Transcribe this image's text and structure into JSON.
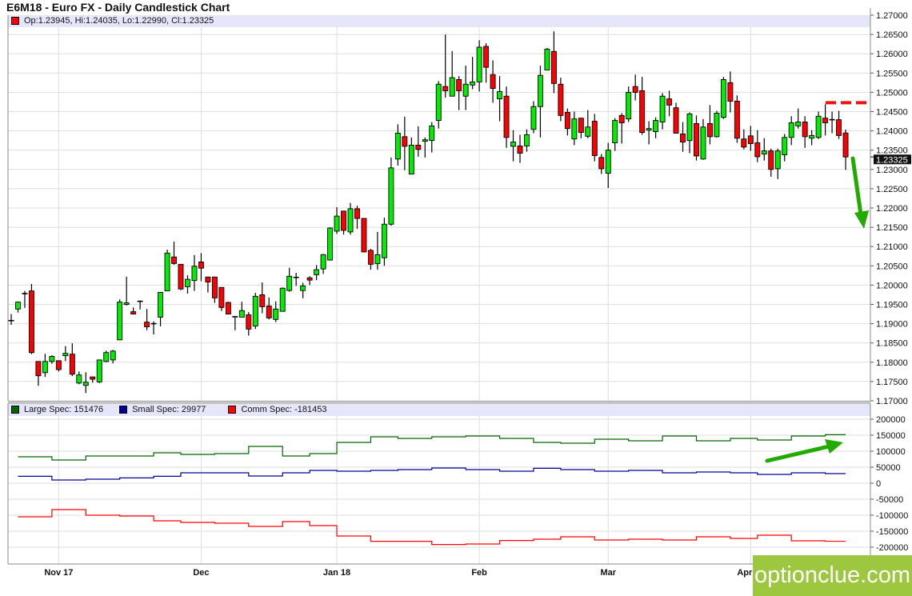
{
  "title": "E6M18 - Euro FX - Daily Candlestick Chart",
  "ohlc_legend": {
    "text": "Op:1.23945, Hi:1.24035, Lo:1.22990, Cl:1.23325",
    "color": "#ff0000"
  },
  "last_price_label": "1.23325",
  "watermark": "optionclue.com",
  "colors": {
    "up": "#00ee00",
    "down": "#ff0000",
    "large": "#006600",
    "small": "#000099",
    "comm": "#ff0000",
    "annotation": "#22aa00",
    "legend_bg": "#e6e6fa"
  },
  "chart_data": [
    {
      "type": "candlestick",
      "title": "E6M18 - Euro FX - Daily Candlestick Chart",
      "ylim": [
        1.17,
        1.27
      ],
      "y_ticks": [
        "1.17000",
        "1.17500",
        "1.18000",
        "1.18500",
        "1.19000",
        "1.19500",
        "1.20000",
        "1.20500",
        "1.21000",
        "1.21500",
        "1.22000",
        "1.22500",
        "1.23000",
        "1.23500",
        "1.24000",
        "1.24500",
        "1.25000",
        "1.25500",
        "1.26000",
        "1.26500",
        "1.27000"
      ],
      "x_ticks": [
        {
          "label": "Nov 17",
          "date": "2017-11-01"
        },
        {
          "label": "Dec",
          "date": "2017-12-01"
        },
        {
          "label": "Jan 18",
          "date": "2018-01-02"
        },
        {
          "label": "Feb",
          "date": "2018-02-01"
        },
        {
          "label": "Mar",
          "date": "2018-03-01"
        },
        {
          "label": "Apr",
          "date": "2018-04-02"
        }
      ],
      "grid": true,
      "candle_fields": [
        "date",
        "open",
        "high",
        "low",
        "close"
      ],
      "candles": [
        [
          "2017-10-23",
          1.1908,
          1.1925,
          1.1897,
          1.1908
        ],
        [
          "2017-10-24",
          1.1938,
          1.1957,
          1.1929,
          1.1956
        ],
        [
          "2017-10-25",
          1.1978,
          1.1985,
          1.1941,
          1.1978
        ],
        [
          "2017-10-26",
          1.1985,
          1.2003,
          1.1821,
          1.1825
        ],
        [
          "2017-10-27",
          1.1802,
          1.1802,
          1.1739,
          1.1765
        ],
        [
          "2017-10-30",
          1.1773,
          1.1822,
          1.1762,
          1.1802
        ],
        [
          "2017-10-31",
          1.1802,
          1.1818,
          1.1796,
          1.1815
        ],
        [
          "2017-11-01",
          1.1804,
          1.1804,
          1.1776,
          1.1781
        ],
        [
          "2017-11-02",
          1.1817,
          1.1842,
          1.1803,
          1.1823
        ],
        [
          "2017-11-03",
          1.1821,
          1.1849,
          1.1764,
          1.1769
        ],
        [
          "2017-11-06",
          1.1746,
          1.1776,
          1.1743,
          1.1767
        ],
        [
          "2017-11-07",
          1.174,
          1.1774,
          1.172,
          1.1748
        ],
        [
          "2017-11-08",
          1.1762,
          1.1762,
          1.1747,
          1.1756
        ],
        [
          "2017-11-09",
          1.1749,
          1.1806,
          1.1746,
          1.1806
        ],
        [
          "2017-11-10",
          1.1802,
          1.183,
          1.18,
          1.1825
        ],
        [
          "2017-11-13",
          1.1806,
          1.1832,
          1.1797,
          1.1829
        ],
        [
          "2017-11-14",
          1.1858,
          1.1963,
          1.1858,
          1.1956
        ],
        [
          "2017-11-15",
          1.195,
          1.2022,
          1.1947,
          1.1954
        ],
        [
          "2017-11-16",
          1.1931,
          1.1942,
          1.1925,
          1.1925
        ],
        [
          "2017-11-17",
          1.1958,
          1.196,
          1.1937,
          1.1958
        ],
        [
          "2017-11-20",
          1.1904,
          1.1938,
          1.1883,
          1.1892
        ],
        [
          "2017-11-21",
          1.19,
          1.1906,
          1.1872,
          1.19
        ],
        [
          "2017-11-22",
          1.1917,
          1.1981,
          1.1893,
          1.1981
        ],
        [
          "2017-11-24",
          1.1985,
          1.2092,
          1.1985,
          1.2083
        ],
        [
          "2017-11-27",
          1.2073,
          1.2113,
          1.2053,
          1.2056
        ],
        [
          "2017-11-28",
          1.2054,
          1.2054,
          1.1987,
          1.199
        ],
        [
          "2017-11-29",
          1.1996,
          1.2026,
          1.1978,
          1.2015
        ],
        [
          "2017-11-30",
          1.2012,
          1.2078,
          1.1985,
          1.2049
        ],
        [
          "2017-12-01",
          1.206,
          1.2083,
          1.201,
          1.2044
        ],
        [
          "2017-12-04",
          1.2021,
          1.2021,
          1.1981,
          1.2008
        ],
        [
          "2017-12-05",
          1.2021,
          1.2021,
          1.1954,
          1.1967
        ],
        [
          "2017-12-06",
          1.1994,
          1.1994,
          1.1933,
          1.1942
        ],
        [
          "2017-12-07",
          1.1955,
          1.1957,
          1.1925,
          1.1925
        ],
        [
          "2017-12-08",
          1.1918,
          1.1918,
          1.1883,
          1.1918
        ],
        [
          "2017-12-11",
          1.1917,
          1.1957,
          1.1917,
          1.1934
        ],
        [
          "2017-12-12",
          1.1923,
          1.193,
          1.1869,
          1.1886
        ],
        [
          "2017-12-13",
          1.1894,
          1.198,
          1.1886,
          1.1971
        ],
        [
          "2017-12-14",
          1.1975,
          1.2007,
          1.1927,
          1.1944
        ],
        [
          "2017-12-15",
          1.1946,
          1.1968,
          1.1911,
          1.1915
        ],
        [
          "2017-12-18",
          1.1911,
          1.1958,
          1.1904,
          1.1938
        ],
        [
          "2017-12-19",
          1.1932,
          1.1994,
          1.1932,
          1.1992
        ],
        [
          "2017-12-20",
          1.1986,
          1.2045,
          1.1983,
          1.2023
        ],
        [
          "2017-12-21",
          1.202,
          1.2032,
          1.1998,
          1.202
        ],
        [
          "2017-12-22",
          1.1986,
          1.2006,
          1.1966,
          1.1998
        ],
        [
          "2017-12-26",
          1.2019,
          1.2023,
          1.2,
          1.2013
        ],
        [
          "2017-12-27",
          1.2027,
          1.2052,
          1.2013,
          1.204
        ],
        [
          "2017-12-28",
          1.2042,
          1.2081,
          1.2029,
          1.2079
        ],
        [
          "2017-12-29",
          1.2065,
          1.215,
          1.2065,
          1.2148
        ],
        [
          "2018-01-02",
          1.214,
          1.2202,
          1.2133,
          1.2179
        ],
        [
          "2018-01-03",
          1.2192,
          1.2192,
          1.2131,
          1.2142
        ],
        [
          "2018-01-04",
          1.2138,
          1.2213,
          1.2131,
          1.2198
        ],
        [
          "2018-01-05",
          1.2198,
          1.2206,
          1.2146,
          1.2173
        ],
        [
          "2018-01-08",
          1.2173,
          1.2173,
          1.2086,
          1.2086
        ],
        [
          "2018-01-09",
          1.209,
          1.2094,
          1.204,
          1.2054
        ],
        [
          "2018-01-10",
          1.2056,
          1.2138,
          1.204,
          1.2079
        ],
        [
          "2018-01-11",
          1.2071,
          1.2175,
          1.205,
          1.2158
        ],
        [
          "2018-01-12",
          1.2158,
          1.2331,
          1.2154,
          1.2304
        ],
        [
          "2018-01-16",
          1.2327,
          1.2417,
          1.231,
          1.2394
        ],
        [
          "2018-01-17",
          1.2385,
          1.2437,
          1.2298,
          1.236
        ],
        [
          "2018-01-18",
          1.2288,
          1.2383,
          1.2288,
          1.2363
        ],
        [
          "2018-01-19",
          1.2363,
          1.2412,
          1.2333,
          1.2352
        ],
        [
          "2018-01-22",
          1.2373,
          1.2383,
          1.2331,
          1.2377
        ],
        [
          "2018-01-23",
          1.2375,
          1.2423,
          1.2344,
          1.2413
        ],
        [
          "2018-01-24",
          1.2427,
          1.2529,
          1.2406,
          1.2521
        ],
        [
          "2018-01-25",
          1.2515,
          1.265,
          1.2486,
          1.2504
        ],
        [
          "2018-01-26",
          1.249,
          1.2607,
          1.249,
          1.2538
        ],
        [
          "2018-01-29",
          1.2533,
          1.2542,
          1.2454,
          1.2504
        ],
        [
          "2018-01-30",
          1.249,
          1.2569,
          1.2454,
          1.2521
        ],
        [
          "2018-01-31",
          1.2519,
          1.2592,
          1.2508,
          1.2527
        ],
        [
          "2018-02-01",
          1.2527,
          1.2635,
          1.2502,
          1.2617
        ],
        [
          "2018-02-02",
          1.2619,
          1.2627,
          1.2525,
          1.2565
        ],
        [
          "2018-02-05",
          1.2546,
          1.2583,
          1.2473,
          1.251
        ],
        [
          "2018-02-06",
          1.2483,
          1.2542,
          1.2425,
          1.2502
        ],
        [
          "2018-02-07",
          1.249,
          1.2515,
          1.2356,
          1.2383
        ],
        [
          "2018-02-08",
          1.236,
          1.2402,
          1.2321,
          1.2371
        ],
        [
          "2018-02-09",
          1.2361,
          1.239,
          1.2317,
          1.2342
        ],
        [
          "2018-02-12",
          1.2361,
          1.2404,
          1.2346,
          1.239
        ],
        [
          "2018-02-13",
          1.2404,
          1.2477,
          1.2394,
          1.2463
        ],
        [
          "2018-02-14",
          1.2463,
          1.2569,
          1.2383,
          1.2544
        ],
        [
          "2018-02-15",
          1.2558,
          1.2615,
          1.2558,
          1.2612
        ],
        [
          "2018-02-16",
          1.2606,
          1.2658,
          1.2498,
          1.2523
        ],
        [
          "2018-02-20",
          1.2521,
          1.2538,
          1.2425,
          1.244
        ],
        [
          "2018-02-21",
          1.2448,
          1.2458,
          1.2388,
          1.2406
        ],
        [
          "2018-02-22",
          1.2379,
          1.245,
          1.2363,
          1.2431
        ],
        [
          "2018-02-23",
          1.2433,
          1.2433,
          1.2381,
          1.2396
        ],
        [
          "2018-02-26",
          1.2386,
          1.2454,
          1.2381,
          1.241
        ],
        [
          "2018-02-27",
          1.2425,
          1.2444,
          1.2321,
          1.2336
        ],
        [
          "2018-02-28",
          1.2331,
          1.234,
          1.2288,
          1.2302
        ],
        [
          "2018-03-01",
          1.229,
          1.2369,
          1.2252,
          1.235
        ],
        [
          "2018-03-02",
          1.2369,
          1.2433,
          1.2348,
          1.2427
        ],
        [
          "2018-03-05",
          1.244,
          1.2446,
          1.2367,
          1.2421
        ],
        [
          "2018-03-06",
          1.2431,
          1.2515,
          1.2423,
          1.25
        ],
        [
          "2018-03-07",
          1.2515,
          1.2546,
          1.2479,
          1.25
        ],
        [
          "2018-03-08",
          1.2504,
          1.254,
          1.239,
          1.2396
        ],
        [
          "2018-03-09",
          1.2402,
          1.2425,
          1.2365,
          1.2406
        ],
        [
          "2018-03-12",
          1.2398,
          1.2435,
          1.2381,
          1.2427
        ],
        [
          "2018-03-13",
          1.2423,
          1.2498,
          1.2404,
          1.249
        ],
        [
          "2018-03-14",
          1.2483,
          1.2504,
          1.2438,
          1.2467
        ],
        [
          "2018-03-15",
          1.246,
          1.2473,
          1.2394,
          1.2394
        ],
        [
          "2018-03-16",
          1.2392,
          1.2423,
          1.2346,
          1.2371
        ],
        [
          "2018-03-19",
          1.2375,
          1.2448,
          1.2342,
          1.2444
        ],
        [
          "2018-03-20",
          1.2419,
          1.244,
          1.2323,
          1.2335
        ],
        [
          "2018-03-21",
          1.2327,
          1.2431,
          1.2325,
          1.241
        ],
        [
          "2018-03-22",
          1.2419,
          1.2467,
          1.2365,
          1.2385
        ],
        [
          "2018-03-23",
          1.2385,
          1.2452,
          1.2383,
          1.2446
        ],
        [
          "2018-03-26",
          1.2435,
          1.254,
          1.2431,
          1.2533
        ],
        [
          "2018-03-27",
          1.2525,
          1.2554,
          1.2448,
          1.2477
        ],
        [
          "2018-03-28",
          1.2477,
          1.2492,
          1.2369,
          1.2381
        ],
        [
          "2018-03-29",
          1.2379,
          1.2404,
          1.2352,
          1.2358
        ],
        [
          "2018-04-02",
          1.2387,
          1.2413,
          1.2348,
          1.2367
        ],
        [
          "2018-04-03",
          1.2369,
          1.2402,
          1.2319,
          1.2333
        ],
        [
          "2018-04-04",
          1.234,
          1.2381,
          1.2323,
          1.2348
        ],
        [
          "2018-04-05",
          1.2348,
          1.2354,
          1.2281,
          1.23
        ],
        [
          "2018-04-06",
          1.2302,
          1.2354,
          1.2275,
          1.2348
        ],
        [
          "2018-04-09",
          1.2338,
          1.2392,
          1.2321,
          1.2383
        ],
        [
          "2018-04-10",
          1.2383,
          1.2438,
          1.2363,
          1.2421
        ],
        [
          "2018-04-11",
          1.2413,
          1.2458,
          1.2406,
          1.2423
        ],
        [
          "2018-04-12",
          1.2423,
          1.2438,
          1.2356,
          1.2385
        ],
        [
          "2018-04-13",
          1.2381,
          1.2402,
          1.2363,
          1.2388
        ],
        [
          "2018-04-16",
          1.2383,
          1.245,
          1.2379,
          1.2438
        ],
        [
          "2018-04-17",
          1.2433,
          1.2469,
          1.2388,
          1.2421
        ],
        [
          "2018-04-18",
          1.2429,
          1.245,
          1.2394,
          1.2429
        ],
        [
          "2018-04-19",
          1.2429,
          1.2452,
          1.2379,
          1.2388
        ],
        [
          "2018-04-20",
          1.23945,
          1.24035,
          1.2299,
          1.23325
        ]
      ],
      "resistance_level": 1.2473
    },
    {
      "type": "line",
      "step": true,
      "ylim": [
        -200000,
        200000
      ],
      "y_ticks": [
        "200000",
        "150000",
        "100000",
        "50000",
        "0",
        "-50000",
        "-100000",
        "-150000",
        "-200000"
      ],
      "grid": true,
      "legend_placement": "top-left",
      "dates": [
        "2017-10-24",
        "2017-10-31",
        "2017-11-07",
        "2017-11-14",
        "2017-11-21",
        "2017-11-28",
        "2017-12-05",
        "2017-12-12",
        "2017-12-19",
        "2017-12-26",
        "2018-01-02",
        "2018-01-09",
        "2018-01-16",
        "2018-01-23",
        "2018-01-30",
        "2018-02-06",
        "2018-02-13",
        "2018-02-20",
        "2018-02-27",
        "2018-03-06",
        "2018-03-13",
        "2018-03-20",
        "2018-03-27",
        "2018-04-03",
        "2018-04-10",
        "2018-04-17"
      ],
      "series": [
        {
          "name": "Large Spec",
          "legend": "Large Spec: 151476",
          "color": "#006600",
          "values": [
            82500,
            72500,
            85000,
            85000,
            95000,
            90000,
            92500,
            115000,
            85000,
            92500,
            127500,
            145000,
            140000,
            145000,
            147500,
            140000,
            127500,
            125000,
            137500,
            132500,
            147500,
            132500,
            140000,
            135000,
            147500,
            151476
          ]
        },
        {
          "name": "Small Spec",
          "legend": "Small Spec: 29977",
          "color": "#000099",
          "values": [
            21500,
            10000,
            12500,
            16500,
            21500,
            32500,
            32500,
            22500,
            32500,
            40000,
            37500,
            40000,
            42500,
            47500,
            42500,
            37500,
            46500,
            42500,
            37500,
            40000,
            32500,
            35000,
            32500,
            27500,
            32500,
            29977
          ]
        },
        {
          "name": "Comm Spec",
          "legend": "Comm Spec: -181453",
          "color": "#ff0000",
          "values": [
            -105000,
            -82500,
            -100000,
            -102500,
            -117500,
            -122500,
            -125000,
            -135000,
            -120000,
            -132500,
            -165000,
            -181500,
            -181500,
            -191500,
            -190000,
            -179000,
            -175000,
            -167500,
            -177500,
            -175000,
            -177500,
            -167500,
            -172500,
            -162500,
            -180000,
            -181453
          ]
        }
      ]
    }
  ]
}
